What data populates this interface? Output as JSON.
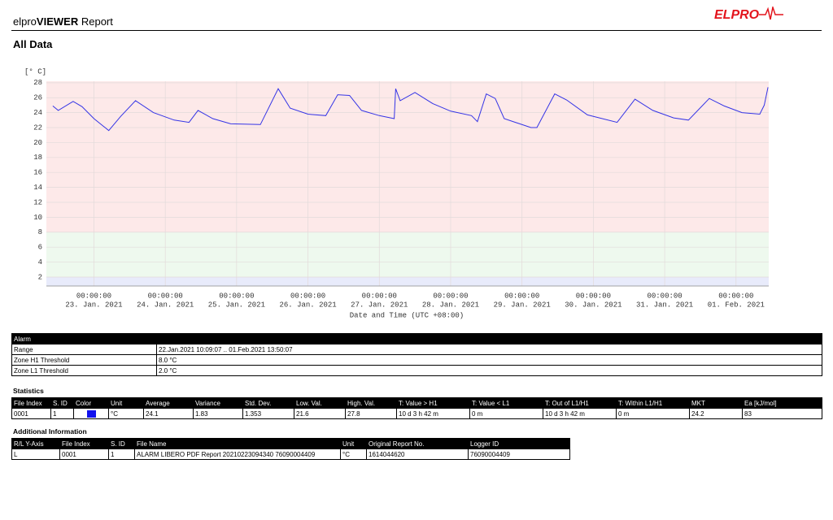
{
  "header": {
    "title_prefix": "elpro",
    "title_bold": "VIEWER",
    "title_suffix": "Report",
    "logo": "ELPRO"
  },
  "section_title": "All Data",
  "chart_data": {
    "type": "line",
    "y_unit": "[° C]",
    "x_label": "Date and Time (UTC +08:00)",
    "color": "#3434e6",
    "grid": true,
    "thresholds": {
      "h1": 8,
      "l1": 2
    },
    "zone_colors": {
      "above_h1": "#fde9e9",
      "between": "#eef9ee",
      "below_l1": "#e8ebfb"
    },
    "xlim": [
      "2021-01-22T08:00",
      "2021-02-01T11:00"
    ],
    "ylim": [
      0.8,
      28.2
    ],
    "yticks": [
      2,
      4,
      6,
      8,
      10,
      12,
      14,
      16,
      18,
      20,
      22,
      24,
      26,
      28
    ],
    "xticks": [
      {
        "value": "2021-01-23T00:00",
        "label": [
          "00:00:00",
          "23. Jan. 2021"
        ]
      },
      {
        "value": "2021-01-24T00:00",
        "label": [
          "00:00:00",
          "24. Jan. 2021"
        ]
      },
      {
        "value": "2021-01-25T00:00",
        "label": [
          "00:00:00",
          "25. Jan. 2021"
        ]
      },
      {
        "value": "2021-01-26T00:00",
        "label": [
          "00:00:00",
          "26. Jan. 2021"
        ]
      },
      {
        "value": "2021-01-27T00:00",
        "label": [
          "00:00:00",
          "27. Jan. 2021"
        ]
      },
      {
        "value": "2021-01-28T00:00",
        "label": [
          "00:00:00",
          "28. Jan. 2021"
        ]
      },
      {
        "value": "2021-01-29T00:00",
        "label": [
          "00:00:00",
          "29. Jan. 2021"
        ]
      },
      {
        "value": "2021-01-30T00:00",
        "label": [
          "00:00:00",
          "30. Jan. 2021"
        ]
      },
      {
        "value": "2021-01-31T00:00",
        "label": [
          "00:00:00",
          "31. Jan. 2021"
        ]
      },
      {
        "value": "2021-02-01T00:00",
        "label": [
          "00:00:00",
          "01. Feb. 2021"
        ]
      }
    ],
    "x": [
      "2021-01-22T10:09",
      "2021-01-22T12:00",
      "2021-01-22T17:00",
      "2021-01-22T20:00",
      "2021-01-23T00:00",
      "2021-01-23T05:00",
      "2021-01-23T09:00",
      "2021-01-23T14:00",
      "2021-01-23T20:00",
      "2021-01-24T03:00",
      "2021-01-24T08:00",
      "2021-01-24T11:00",
      "2021-01-24T16:00",
      "2021-01-24T22:00",
      "2021-01-25T08:00",
      "2021-01-25T14:00",
      "2021-01-25T18:00",
      "2021-01-26T00:00",
      "2021-01-26T06:00",
      "2021-01-26T10:00",
      "2021-01-26T14:00",
      "2021-01-26T18:00",
      "2021-01-27T00:00",
      "2021-01-27T05:00",
      "2021-01-27T05:30",
      "2021-01-27T07:00",
      "2021-01-27T12:00",
      "2021-01-27T18:00",
      "2021-01-28T00:00",
      "2021-01-28T07:00",
      "2021-01-28T09:00",
      "2021-01-28T12:00",
      "2021-01-28T15:00",
      "2021-01-28T18:00",
      "2021-01-29T03:00",
      "2021-01-29T05:00",
      "2021-01-29T11:00",
      "2021-01-29T15:00",
      "2021-01-29T22:00",
      "2021-01-30T08:00",
      "2021-01-30T14:00",
      "2021-01-30T20:00",
      "2021-01-31T03:00",
      "2021-01-31T08:00",
      "2021-01-31T15:00",
      "2021-01-31T20:00",
      "2021-02-01T02:00",
      "2021-02-01T08:00",
      "2021-02-01T09:30",
      "2021-02-01T10:45"
    ],
    "values": [
      24.9,
      24.3,
      25.5,
      24.8,
      23.2,
      21.6,
      23.5,
      25.6,
      24.0,
      23.0,
      22.7,
      24.3,
      23.2,
      22.5,
      22.4,
      27.2,
      24.6,
      23.8,
      23.6,
      26.4,
      26.3,
      24.3,
      23.6,
      23.2,
      27.2,
      25.6,
      26.7,
      25.2,
      24.2,
      23.6,
      22.8,
      26.5,
      25.9,
      23.2,
      22.0,
      22.0,
      26.5,
      25.7,
      23.7,
      22.7,
      25.8,
      24.3,
      23.3,
      23.0,
      25.9,
      24.9,
      24.0,
      23.8,
      25.0,
      27.4
    ]
  },
  "alarm": {
    "title": "Alarm",
    "rows": [
      [
        "Range",
        "22.Jan.2021 10:09:07 .. 01.Feb.2021 13:50:07"
      ],
      [
        "Zone H1 Threshold",
        "8.0 °C"
      ],
      [
        "Zone L1 Threshold",
        "2.0 °C"
      ]
    ]
  },
  "statistics": {
    "title": "Statistics",
    "columns": [
      "File Index",
      "S. ID",
      "Color",
      "Unit",
      "Average",
      "Variance",
      "Std. Dev.",
      "Low. Val.",
      "High. Val.",
      "T: Value > H1",
      "T: Value < L1",
      "T: Out of L1/H1",
      "T: Within L1/H1",
      "MKT",
      "Ea [kJ/mol]"
    ],
    "rows": [
      [
        "0001",
        "1",
        "#1212ee",
        "°C",
        "24.1",
        "1.83",
        "1.353",
        "21.6",
        "27.8",
        "10 d 3 h 42 m",
        "0 m",
        "10 d 3 h 42 m",
        "0 m",
        "24.2",
        "83"
      ]
    ],
    "color_column": 2
  },
  "additional": {
    "title": "Additional Information",
    "columns": [
      "R/L Y-Axis",
      "File Index",
      "S. ID",
      "File Name",
      "Unit",
      "Original Report No.",
      "Logger ID"
    ],
    "rows": [
      [
        "L",
        "0001",
        "1",
        "ALARM LIBERO PDF Report 20210223094340 76090004409",
        "°C",
        "1614044620",
        "76090004409"
      ]
    ]
  }
}
